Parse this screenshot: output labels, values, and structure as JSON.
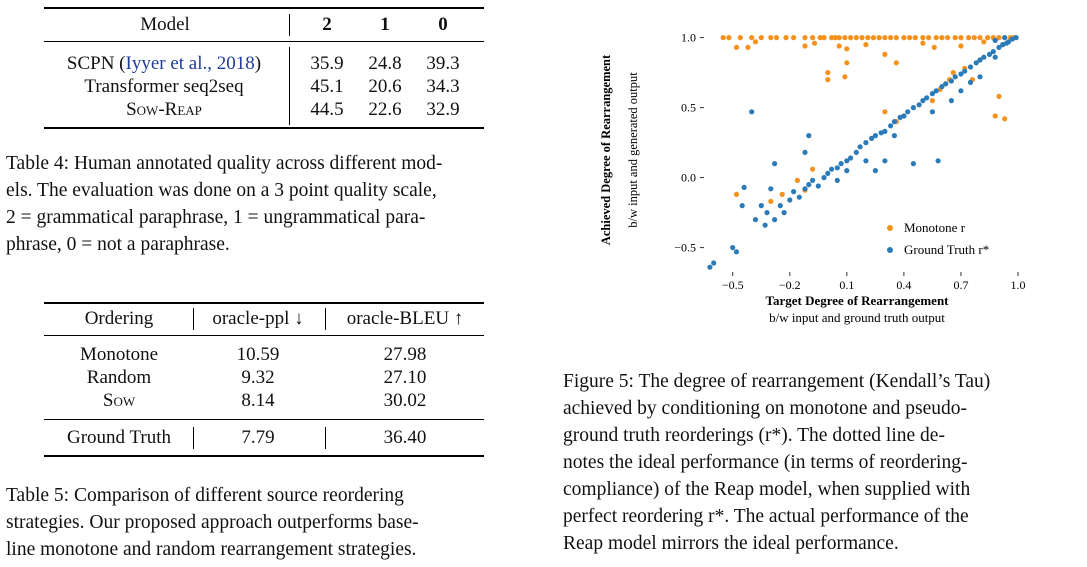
{
  "table4": {
    "headers": [
      "Model",
      "2",
      "1",
      "0"
    ],
    "rows": [
      {
        "model": "SCPN (",
        "cite": "Iyyer et al., 2018",
        "model_end": ")",
        "v2": "35.9",
        "v1": "24.8",
        "v0": "39.3"
      },
      {
        "model": "Transformer seq2seq",
        "v2": "45.1",
        "v1": "20.6",
        "v0": "34.3"
      },
      {
        "model": "Sow-Reap",
        "v2": "44.5",
        "v1": "22.6",
        "v0": "32.9"
      }
    ],
    "caption_lines": [
      "Table 4: Human annotated quality across different mod-",
      "els. The evaluation was done on a 3 point quality scale,",
      "2 = grammatical paraphrase, 1 = ungrammatical para-",
      "phrase, 0 = not a paraphrase."
    ]
  },
  "table5": {
    "headers": [
      "Ordering",
      "oracle-ppl ↓",
      "oracle-BLEU ↑"
    ],
    "rows": [
      {
        "ordering": "Monotone",
        "ppl": "10.59",
        "bleu": "27.98"
      },
      {
        "ordering": "Random",
        "ppl": "9.32",
        "bleu": "27.10"
      },
      {
        "ordering": "Sow",
        "ppl": "8.14",
        "bleu": "30.02"
      }
    ],
    "gt_row": {
      "ordering": "Ground Truth",
      "ppl": "7.79",
      "bleu": "36.40"
    },
    "caption_lines": [
      "Table 5: Comparison of different source reordering",
      "strategies. Our proposed approach outperforms base-",
      "line monotone and random rearrangement strategies."
    ]
  },
  "figure5": {
    "caption_lines": [
      "Figure 5: The degree of rearrangement (Kendall’s Tau)",
      "achieved by conditioning on monotone and pseudo-",
      "ground truth reorderings (r*). The dotted line de-",
      "notes the ideal performance (in terms of reordering-",
      "compliance) of the Reap model, when supplied with",
      "perfect reordering r*. The actual performance of the",
      "Reap model mirrors the ideal performance."
    ]
  },
  "chart_data": {
    "type": "scatter",
    "xlabel": "Target Degree of Rearrangement",
    "xlabel_sub": "b/w input and ground truth output",
    "ylabel": "Achieved Degree of Rearrangement",
    "ylabel_sub": "b/w input and generated output",
    "xlim": [
      -0.63,
      1.0
    ],
    "ylim": [
      -0.66,
      1.04
    ],
    "xticks": [
      -0.5,
      -0.2,
      0.1,
      0.4,
      0.7,
      1.0
    ],
    "xtick_labels": [
      "−0.5",
      "−0.2",
      "0.1",
      "0.4",
      "0.7",
      "1.0"
    ],
    "yticks": [
      1.0,
      0.5,
      0.0,
      -0.5
    ],
    "ytick_labels": [
      "1.0",
      "0.5",
      "0.0",
      "−0.5"
    ],
    "grid": false,
    "legend_position": "bottom-right",
    "colors": {
      "monotone": "#f5921e",
      "ground_truth": "#2b7bb9"
    },
    "series": [
      {
        "name": "Monotone r",
        "points": [
          [
            -0.55,
            1.0
          ],
          [
            -0.52,
            1.0
          ],
          [
            -0.46,
            1.0
          ],
          [
            -0.4,
            1.0
          ],
          [
            -0.35,
            1.0
          ],
          [
            -0.3,
            1.0
          ],
          [
            -0.27,
            1.0
          ],
          [
            -0.22,
            1.0
          ],
          [
            -0.18,
            1.0
          ],
          [
            -0.12,
            1.0
          ],
          [
            -0.08,
            1.0
          ],
          [
            -0.04,
            1.0
          ],
          [
            -0.02,
            1.0
          ],
          [
            0.02,
            1.0
          ],
          [
            0.04,
            1.0
          ],
          [
            0.06,
            1.0
          ],
          [
            0.09,
            1.0
          ],
          [
            0.12,
            1.0
          ],
          [
            0.15,
            1.0
          ],
          [
            0.18,
            1.0
          ],
          [
            0.21,
            1.0
          ],
          [
            0.24,
            1.0
          ],
          [
            0.27,
            1.0
          ],
          [
            0.3,
            1.0
          ],
          [
            0.33,
            1.0
          ],
          [
            0.36,
            1.0
          ],
          [
            0.4,
            1.0
          ],
          [
            0.43,
            1.0
          ],
          [
            0.46,
            1.0
          ],
          [
            0.5,
            1.0
          ],
          [
            0.53,
            1.0
          ],
          [
            0.57,
            1.0
          ],
          [
            0.6,
            1.0
          ],
          [
            0.63,
            1.0
          ],
          [
            0.67,
            1.0
          ],
          [
            0.7,
            1.0
          ],
          [
            0.74,
            1.0
          ],
          [
            0.77,
            1.0
          ],
          [
            0.8,
            1.0
          ],
          [
            0.84,
            1.0
          ],
          [
            0.87,
            1.0
          ],
          [
            0.9,
            1.0
          ],
          [
            0.93,
            1.0
          ],
          [
            0.96,
            1.0
          ],
          [
            0.98,
            1.0
          ],
          [
            -0.48,
            0.93
          ],
          [
            -0.42,
            0.93
          ],
          [
            -0.38,
            0.97
          ],
          [
            -0.12,
            0.94
          ],
          [
            -0.07,
            0.96
          ],
          [
            0.06,
            0.94
          ],
          [
            0.1,
            0.92
          ],
          [
            0.2,
            0.95
          ],
          [
            0.5,
            0.96
          ],
          [
            0.56,
            0.93
          ],
          [
            0.7,
            0.94
          ],
          [
            0.82,
            0.97
          ],
          [
            0.92,
            0.95
          ],
          [
            0.1,
            0.82
          ],
          [
            0.36,
            0.82
          ],
          [
            0.3,
            0.88
          ],
          [
            0.0,
            0.75
          ],
          [
            0.0,
            0.7
          ],
          [
            0.09,
            0.72
          ],
          [
            0.66,
            0.75
          ],
          [
            0.72,
            0.78
          ],
          [
            0.8,
            0.84
          ],
          [
            0.76,
            0.7
          ],
          [
            0.55,
            0.55
          ],
          [
            0.59,
            0.63
          ],
          [
            0.62,
            0.67
          ],
          [
            0.64,
            0.7
          ],
          [
            0.9,
            0.58
          ],
          [
            0.93,
            0.42
          ],
          [
            0.88,
            0.44
          ],
          [
            0.3,
            0.47
          ],
          [
            0.36,
            0.4
          ],
          [
            0.4,
            0.44
          ],
          [
            -0.3,
            -0.17
          ],
          [
            -0.24,
            -0.12
          ],
          [
            -0.12,
            -0.09
          ],
          [
            -0.08,
            0.06
          ],
          [
            -0.16,
            -0.02
          ],
          [
            -0.48,
            -0.12
          ]
        ]
      },
      {
        "name": "Ground Truth r*",
        "points": [
          [
            -0.62,
            -0.64
          ],
          [
            -0.6,
            -0.61
          ],
          [
            -0.5,
            -0.5
          ],
          [
            -0.48,
            -0.53
          ],
          [
            -0.45,
            -0.2
          ],
          [
            -0.44,
            -0.07
          ],
          [
            -0.38,
            -0.3
          ],
          [
            -0.35,
            -0.2
          ],
          [
            -0.33,
            -0.34
          ],
          [
            -0.32,
            -0.25
          ],
          [
            -0.28,
            -0.3
          ],
          [
            -0.25,
            -0.2
          ],
          [
            -0.23,
            -0.25
          ],
          [
            -0.2,
            -0.16
          ],
          [
            -0.18,
            -0.1
          ],
          [
            -0.15,
            -0.14
          ],
          [
            -0.12,
            -0.08
          ],
          [
            -0.1,
            -0.05
          ],
          [
            -0.08,
            -0.02
          ],
          [
            -0.05,
            -0.06
          ],
          [
            -0.02,
            0.0
          ],
          [
            0.0,
            0.03
          ],
          [
            0.02,
            0.06
          ],
          [
            0.05,
            0.07
          ],
          [
            0.07,
            0.1
          ],
          [
            0.1,
            0.12
          ],
          [
            0.12,
            0.14
          ],
          [
            0.15,
            0.18
          ],
          [
            0.17,
            0.22
          ],
          [
            0.2,
            0.25
          ],
          [
            0.23,
            0.28
          ],
          [
            0.25,
            0.3
          ],
          [
            0.28,
            0.32
          ],
          [
            0.3,
            0.33
          ],
          [
            0.33,
            0.37
          ],
          [
            0.35,
            0.4
          ],
          [
            0.38,
            0.43
          ],
          [
            0.4,
            0.44
          ],
          [
            0.42,
            0.47
          ],
          [
            0.45,
            0.5
          ],
          [
            0.48,
            0.52
          ],
          [
            0.5,
            0.55
          ],
          [
            0.52,
            0.57
          ],
          [
            0.55,
            0.6
          ],
          [
            0.57,
            0.62
          ],
          [
            0.6,
            0.65
          ],
          [
            0.62,
            0.67
          ],
          [
            0.65,
            0.69
          ],
          [
            0.67,
            0.72
          ],
          [
            0.7,
            0.74
          ],
          [
            0.72,
            0.76
          ],
          [
            0.75,
            0.79
          ],
          [
            0.78,
            0.82
          ],
          [
            0.8,
            0.84
          ],
          [
            0.82,
            0.86
          ],
          [
            0.85,
            0.88
          ],
          [
            0.87,
            0.9
          ],
          [
            0.9,
            0.93
          ],
          [
            0.92,
            0.95
          ],
          [
            0.95,
            0.97
          ],
          [
            0.97,
            0.99
          ],
          [
            0.99,
            1.0
          ],
          [
            0.93,
            1.0
          ],
          [
            0.88,
            0.98
          ],
          [
            0.94,
            0.96
          ],
          [
            -0.4,
            0.47
          ],
          [
            -0.1,
            0.3
          ],
          [
            -0.12,
            0.18
          ],
          [
            0.2,
            0.12
          ],
          [
            0.3,
            0.12
          ],
          [
            0.58,
            0.12
          ],
          [
            0.45,
            0.1
          ],
          [
            0.25,
            0.05
          ],
          [
            0.05,
            -0.02
          ],
          [
            0.8,
            0.72
          ],
          [
            0.75,
            0.68
          ],
          [
            0.88,
            0.86
          ],
          [
            -0.28,
            0.1
          ],
          [
            -0.3,
            -0.08
          ],
          [
            0.1,
            0.05
          ],
          [
            0.35,
            0.3
          ],
          [
            0.55,
            0.47
          ],
          [
            0.65,
            0.55
          ],
          [
            0.7,
            0.62
          ]
        ]
      }
    ]
  }
}
